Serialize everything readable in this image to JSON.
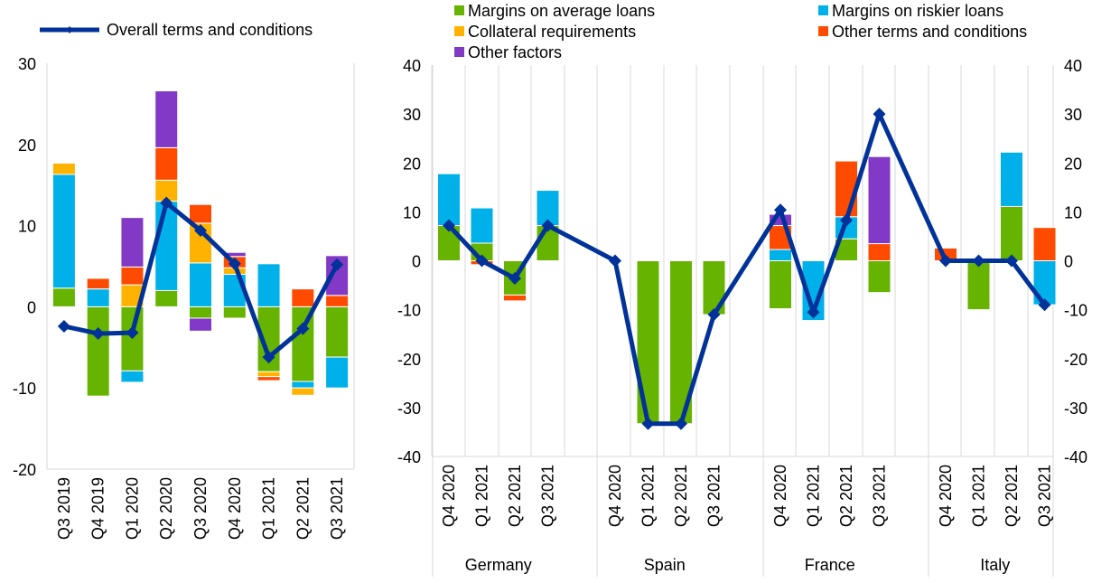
{
  "legend": {
    "overall": "Overall terms and conditions",
    "margins_average": "Margins on average loans",
    "margins_riskier": "Margins on riskier loans",
    "collateral": "Collateral requirements",
    "other_terms": "Other terms and conditions",
    "other_factors": "Other factors"
  },
  "colors": {
    "margins_average": "#66b300",
    "margins_riskier": "#00b0e8",
    "collateral": "#ffb300",
    "other_terms": "#ff4b00",
    "other_factors": "#8139c6",
    "overall": "#003299",
    "grid": "#a6a6a6"
  },
  "chart_data": [
    {
      "type": "bar",
      "stacked": true,
      "ylim": [
        -20,
        30
      ],
      "y_ticks": [
        "30",
        "20",
        "10",
        "0",
        "-10",
        "-20"
      ],
      "categories": [
        "Q3 2019",
        "Q4 2019",
        "Q1 2020",
        "Q2 2020",
        "Q3 2020",
        "Q4 2020",
        "Q1 2021",
        "Q2 2021",
        "Q3 2021"
      ],
      "series": [
        {
          "key": "margins_average",
          "name": "Margins on average loans",
          "values": [
            2.3,
            -11,
            -7.9,
            2,
            -1.4,
            -1.4,
            -8,
            -9.2,
            -6.2
          ]
        },
        {
          "key": "margins_riskier",
          "name": "Margins on riskier loans",
          "values": [
            14,
            2.2,
            -1.4,
            11,
            5.4,
            4,
            5.3,
            -0.8,
            -3.8
          ]
        },
        {
          "key": "collateral",
          "name": "Collateral requirements",
          "values": [
            1.4,
            0,
            2.7,
            2.6,
            4.9,
            0.8,
            -0.6,
            -0.9,
            0
          ]
        },
        {
          "key": "other_terms",
          "name": "Other terms and conditions",
          "values": [
            0,
            1.3,
            2.2,
            4,
            2.3,
            1.4,
            -0.5,
            2.2,
            1.4
          ]
        },
        {
          "key": "other_factors",
          "name": "Other factors",
          "values": [
            0,
            0,
            6.1,
            7,
            -1.6,
            0.5,
            0,
            0,
            4.9
          ]
        }
      ],
      "line": {
        "key": "overall",
        "name": "Overall terms and conditions",
        "values": [
          -2.4,
          -3.3,
          -3.2,
          12.8,
          9.4,
          5.3,
          -6.2,
          -2.7,
          5.2
        ]
      }
    },
    {
      "type": "bar",
      "stacked": true,
      "ylim": [
        -40,
        40
      ],
      "y_ticks": [
        "40",
        "30",
        "20",
        "10",
        "0",
        "-10",
        "-20",
        "-30",
        "-40"
      ],
      "groups": [
        {
          "name": "Germany",
          "categories": [
            "Q4 2020",
            "Q1 2021",
            "Q2 2021",
            "Q3 2021"
          ]
        },
        {
          "name": "Spain",
          "categories": [
            "Q4 2020",
            "Q1 2021",
            "Q2 2021",
            "Q3 2021"
          ]
        },
        {
          "name": "France",
          "categories": [
            "Q4 2020",
            "Q1 2021",
            "Q2 2021",
            "Q3 2021"
          ]
        },
        {
          "name": "Italy",
          "categories": [
            "Q4 2020",
            "Q1 2021",
            "Q2 2021",
            "Q3 2021"
          ]
        }
      ],
      "series": [
        {
          "key": "margins_average",
          "name": "Margins on average loans",
          "values": [
            7.2,
            3.6,
            -7,
            7.2,
            0,
            -33.3,
            -33.3,
            -11,
            -9.8,
            0,
            4.5,
            -6.5,
            0,
            -10,
            11.1,
            0
          ]
        },
        {
          "key": "margins_riskier",
          "name": "Margins on riskier loans",
          "values": [
            10.6,
            7.2,
            0,
            7.2,
            0,
            0,
            0,
            0,
            2.3,
            -12.2,
            4.5,
            0,
            0,
            0,
            11.1,
            -9
          ]
        },
        {
          "key": "collateral",
          "name": "Collateral requirements",
          "values": [
            0,
            0,
            0,
            0,
            0,
            0,
            0,
            0,
            0,
            0,
            0,
            0,
            0,
            0,
            0,
            0
          ]
        },
        {
          "key": "other_terms",
          "name": "Other terms and conditions",
          "values": [
            0,
            -0.8,
            -1.2,
            0,
            0,
            0,
            0,
            0,
            4.9,
            0,
            11.4,
            3.5,
            2.6,
            0,
            0,
            6.8
          ]
        },
        {
          "key": "other_factors",
          "name": "Other factors",
          "values": [
            0,
            0,
            0,
            0,
            0,
            0,
            0,
            0,
            2.3,
            0,
            0,
            17.8,
            0,
            0,
            0,
            0
          ]
        }
      ],
      "line": {
        "key": "overall",
        "name": "Overall terms and conditions",
        "values": [
          7.2,
          0,
          -3.6,
          7.2,
          0,
          -33.3,
          -33.3,
          -11,
          10.4,
          -10.5,
          8.3,
          30,
          0,
          0,
          0,
          -9
        ]
      }
    }
  ]
}
